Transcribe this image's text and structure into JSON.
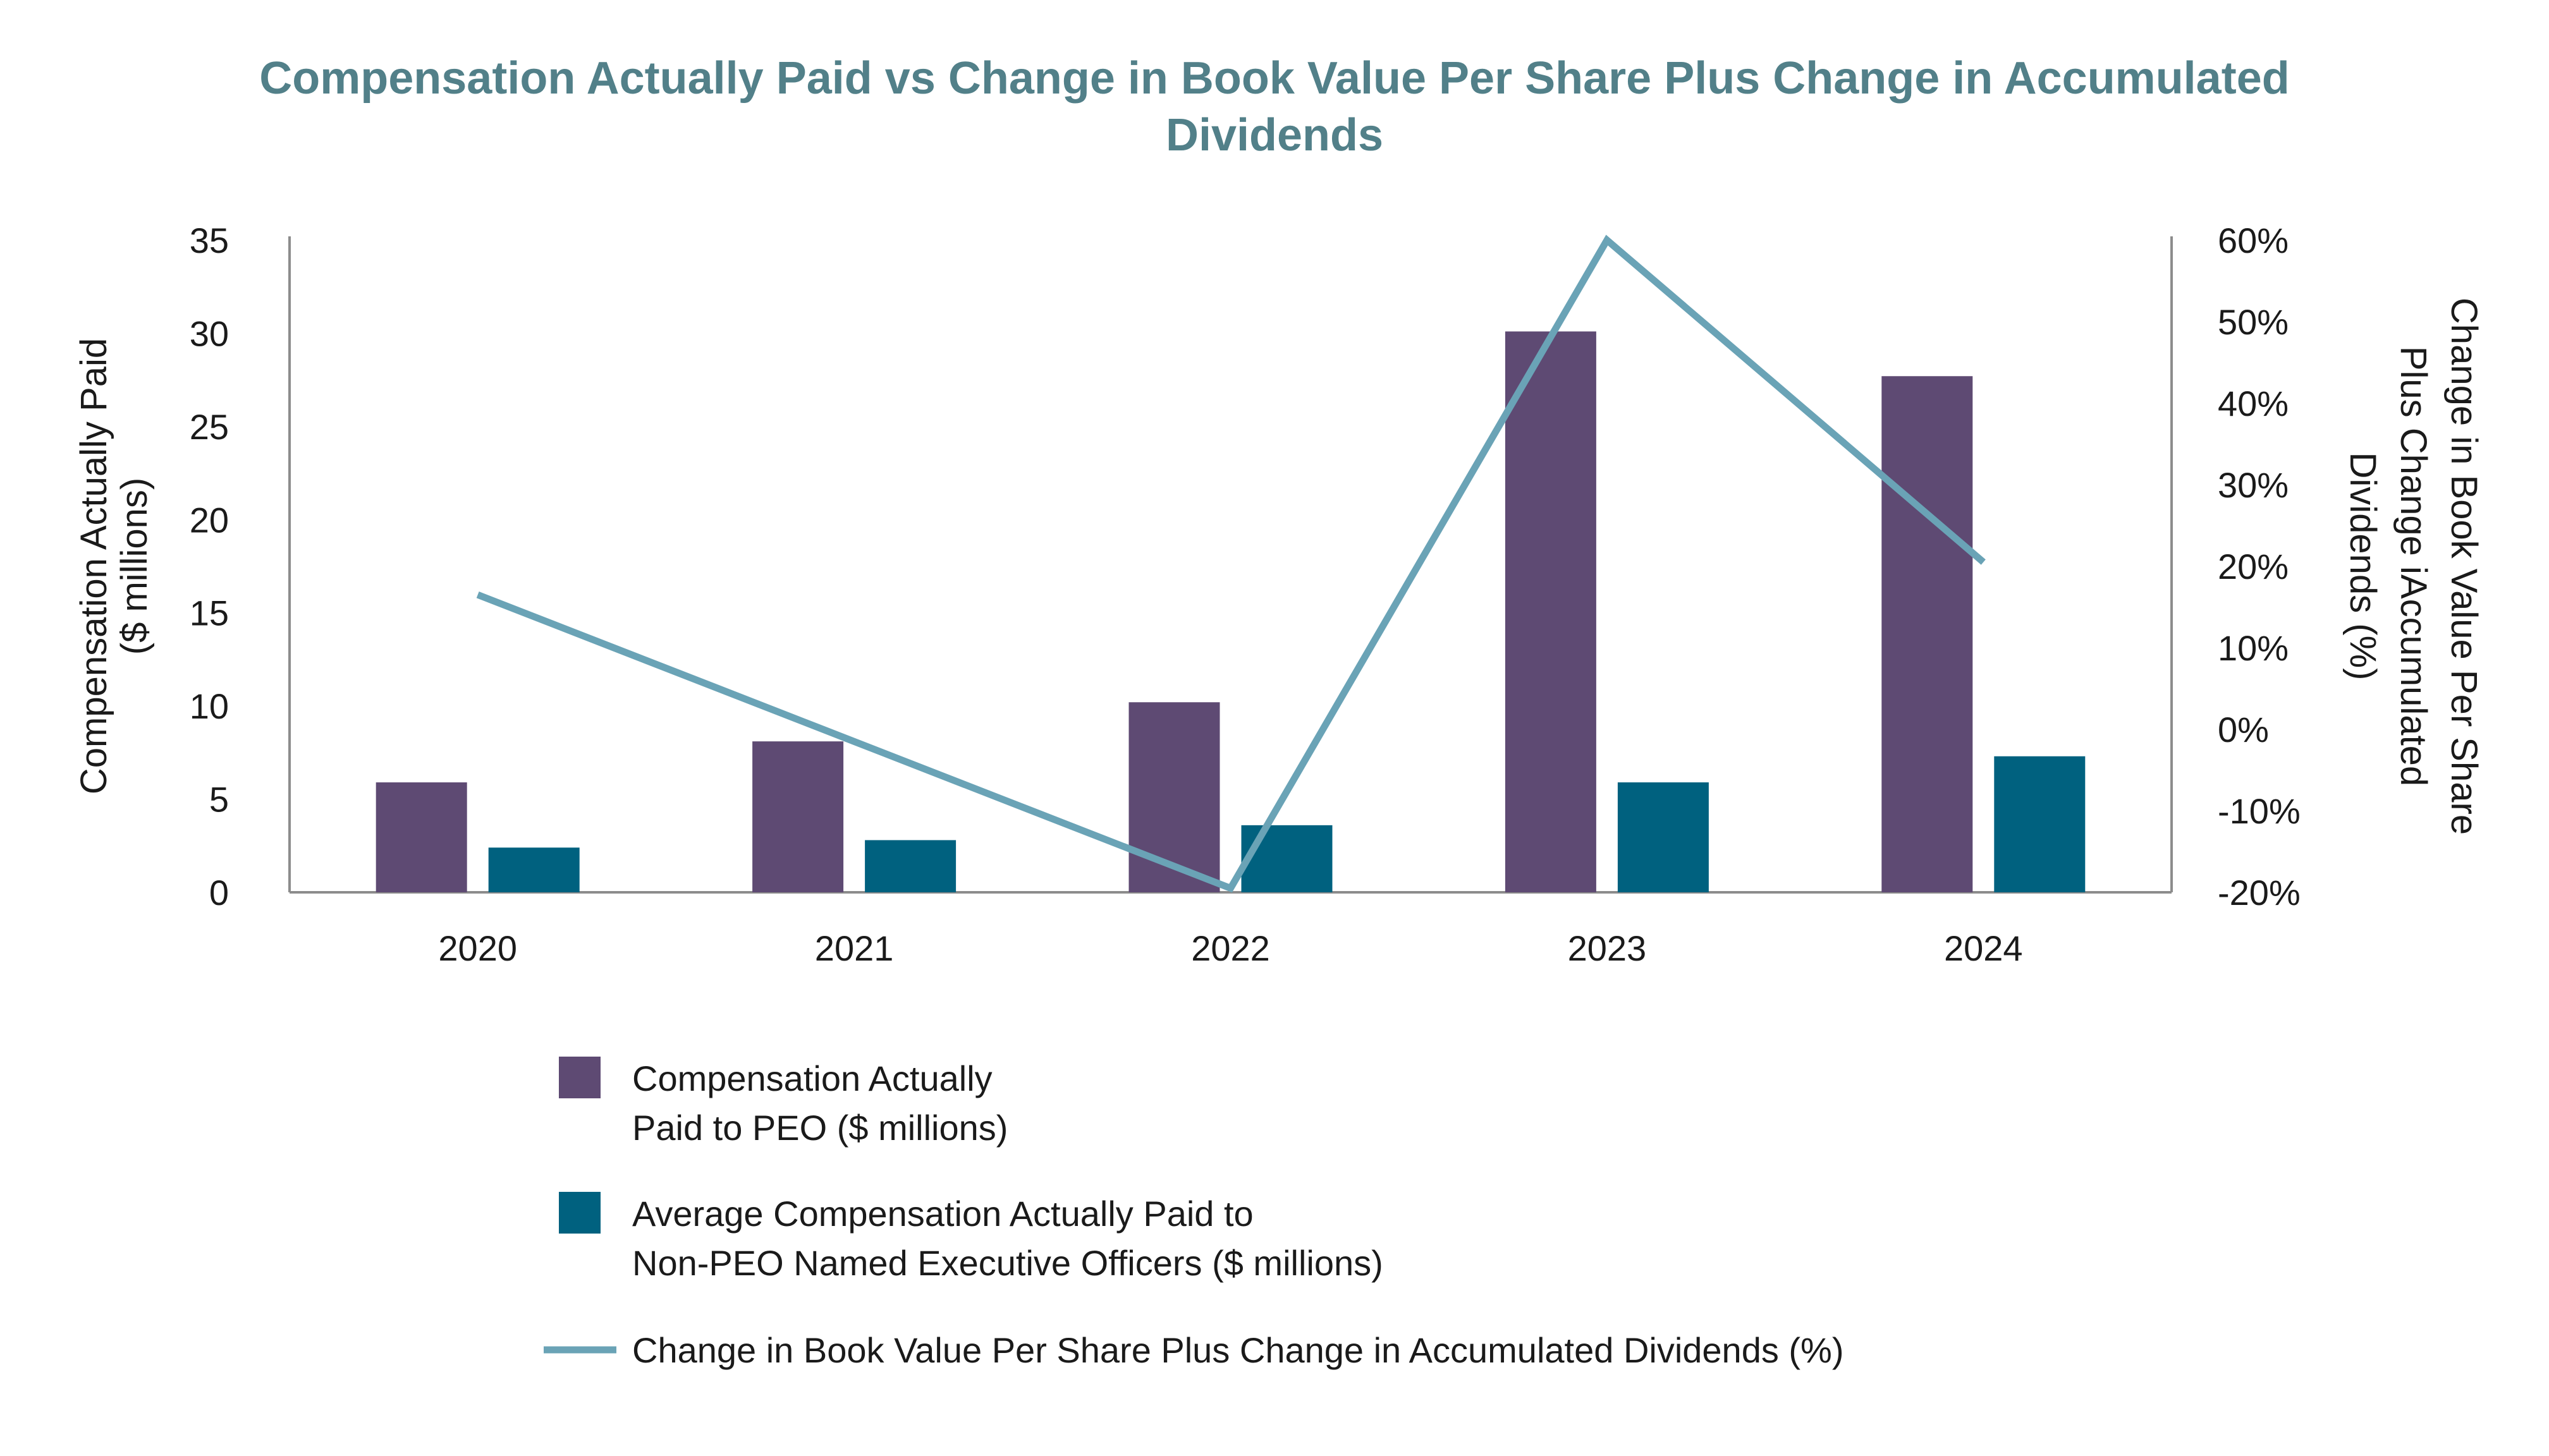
{
  "chart_data": {
    "type": "bar",
    "title": "Compensation Actually Paid vs Change in Book Value Per Share Plus Change in Accumulated Dividends",
    "title_lines": [
      "Compensation Actually Paid vs Change in Book Value Per Share Plus Change in Accumulated",
      "Dividends"
    ],
    "categories": [
      "2020",
      "2021",
      "2022",
      "2023",
      "2024"
    ],
    "series": [
      {
        "name": "Compensation Actually Paid to PEO ($ millions)",
        "name_lines": [
          "Compensation Actually",
          "Paid to PEO ($ millions)"
        ],
        "type": "bar",
        "axis": "left",
        "color": "#5e4a73",
        "values": [
          5.9,
          8.1,
          10.2,
          30.1,
          27.7
        ]
      },
      {
        "name": "Average Compensation Actually Paid to Non-PEO Named Executive Officers ($ millions)",
        "name_lines": [
          "Average Compensation Actually Paid to",
          "Non-PEO Named Executive Officers ($ millions)"
        ],
        "type": "bar",
        "axis": "left",
        "color": "#00617f",
        "values": [
          2.4,
          2.8,
          3.6,
          5.9,
          7.3
        ]
      },
      {
        "name": "Change in Book Value Per Share Plus Change in Accumulated Dividends (%)",
        "name_lines": [
          "Change in Book Value Per Share Plus Change in Accumulated Dividends (%)"
        ],
        "type": "line",
        "axis": "right",
        "color": "#6aa3b6",
        "values": [
          16.5,
          -1.5,
          -19.5,
          60.0,
          20.5
        ]
      }
    ],
    "y_left": {
      "label_lines": [
        "Compensation Actually Paid",
        "($ millions)"
      ],
      "ylim": [
        0,
        35
      ],
      "ticks": [
        0,
        5,
        10,
        15,
        20,
        25,
        30,
        35
      ],
      "tick_labels": [
        "0",
        "5",
        "10",
        "15",
        "20",
        "25",
        "30",
        "35"
      ]
    },
    "y_right": {
      "label_lines": [
        "Change in Book Value Per Share",
        "Plus Change iAccumulated",
        "Dividends (%)"
      ],
      "ylim": [
        -20,
        60
      ],
      "ticks": [
        -20,
        -10,
        0,
        10,
        20,
        30,
        40,
        50,
        60
      ],
      "tick_labels": [
        "-20%",
        "-10%",
        "0%",
        "10%",
        "20%",
        "30%",
        "40%",
        "50%",
        "60%"
      ]
    },
    "grid": false,
    "legend_position": "bottom"
  },
  "colors": {
    "title": "#528089",
    "axis": "#8c8c8c",
    "text": "#1a1a1a"
  }
}
